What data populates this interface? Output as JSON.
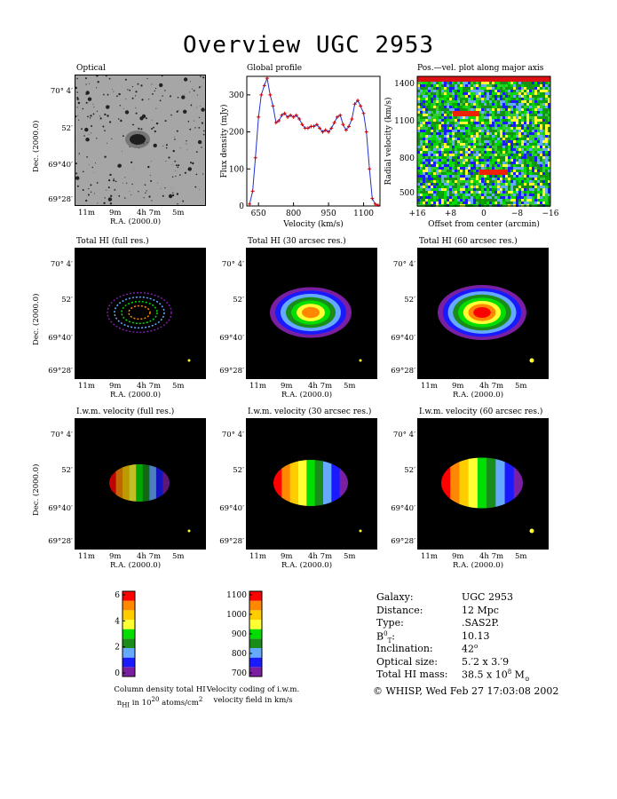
{
  "title": "Overview UGC 2953",
  "panels": {
    "optical": "Optical",
    "global_profile": "Global profile",
    "pv": "Pos.—vel. plot along major axis",
    "hi_full": "Total HI (full res.)",
    "hi_30": "Total HI (30 arcsec res.)",
    "hi_60": "Total HI (60 arcsec res.)",
    "vel_full": "I.w.m. velocity (full res.)",
    "vel_30": "I.w.m. velocity (30 arcsec res.)",
    "vel_60": "I.w.m. velocity (60 arcsec res.)"
  },
  "sky_axes": {
    "xlabel": "R.A. (2000.0)",
    "ylabel": "Dec. (2000.0)",
    "ra_ticks": [
      "11m",
      "9m",
      "4h 7m",
      "5m"
    ],
    "dec_ticks": [
      "70° 4′",
      "52′",
      "69°40′",
      "69°28′"
    ]
  },
  "chart_data": [
    {
      "type": "line",
      "title": "Global profile",
      "xlabel": "Velocity (km/s)",
      "ylabel": "Flux density (mJy)",
      "xlim": [
        600,
        1170
      ],
      "ylim": [
        0,
        350
      ],
      "xticks": [
        650,
        800,
        950,
        1100
      ],
      "yticks": [
        0,
        100,
        200,
        300
      ],
      "x": [
        612,
        625,
        637,
        650,
        662,
        675,
        687,
        700,
        712,
        725,
        737,
        750,
        762,
        775,
        787,
        800,
        812,
        825,
        837,
        850,
        862,
        875,
        887,
        900,
        912,
        925,
        937,
        950,
        962,
        975,
        987,
        1000,
        1012,
        1025,
        1037,
        1050,
        1062,
        1075,
        1087,
        1100,
        1112,
        1125,
        1137,
        1150,
        1162
      ],
      "y": [
        5,
        40,
        130,
        240,
        300,
        325,
        345,
        300,
        270,
        225,
        230,
        245,
        250,
        240,
        245,
        240,
        245,
        235,
        220,
        210,
        210,
        215,
        215,
        220,
        210,
        200,
        205,
        200,
        210,
        225,
        240,
        245,
        220,
        205,
        215,
        235,
        275,
        285,
        270,
        250,
        200,
        100,
        20,
        5,
        2
      ]
    },
    {
      "type": "heatmap",
      "title": "Pos.—vel. plot along major axis",
      "xlabel": "Offset from center (arcmin)",
      "ylabel": "Radial velocity (km/s)",
      "xticks": [
        "+16",
        "+8",
        "0",
        "−8",
        "−16"
      ],
      "yticks": [
        500,
        800,
        1100,
        1400
      ]
    },
    {
      "type": "bar",
      "title": "Column density total HI",
      "caption_line2_pre": "n",
      "caption_line2_sub": "HI",
      "caption_line2_mid": " in 10",
      "caption_line2_sup": "20",
      "caption_line2_post": " atoms/cm",
      "caption_line2_sup2": "2",
      "ticks": [
        "0",
        "2",
        "4",
        "6"
      ],
      "colors": [
        "#7b1fa2",
        "#1a1aff",
        "#66aaff",
        "#1a8c1a",
        "#00dd00",
        "#ffff33",
        "#ffcc00",
        "#ff8800",
        "#ff0000"
      ]
    },
    {
      "type": "bar",
      "title": "Velocity coding of i.w.m.",
      "caption_line2": "velocity field in km/s",
      "ticks": [
        "700",
        "800",
        "900",
        "1000",
        "1100"
      ],
      "colors": [
        "#7b1fa2",
        "#1a1aff",
        "#66aaff",
        "#1a8c1a",
        "#00dd00",
        "#ffff33",
        "#ffcc00",
        "#ff8800",
        "#ff0000"
      ]
    }
  ],
  "info": {
    "rows": [
      {
        "label": "Galaxy:",
        "value": "UGC 2953"
      },
      {
        "label": "Distance:",
        "value": "12 Mpc"
      },
      {
        "label": "Type:",
        "value": ".SAS2P."
      },
      {
        "label": "B",
        "label_sup": "0",
        "label_sub": "T",
        "label_tail": ":",
        "value": "10.13"
      },
      {
        "label": "Inclination:",
        "value": "42",
        "value_sup": "o"
      },
      {
        "label": "Optical size:",
        "value": "5.′2 x 3.′9"
      },
      {
        "label": "Total HI mass:",
        "value": "38.5 x 10",
        "value_sup": "8",
        "value_tail": " M",
        "value_sub": "⊙"
      }
    ],
    "footer": "© WHISP, Wed Feb 27 17:03:08 2002"
  }
}
